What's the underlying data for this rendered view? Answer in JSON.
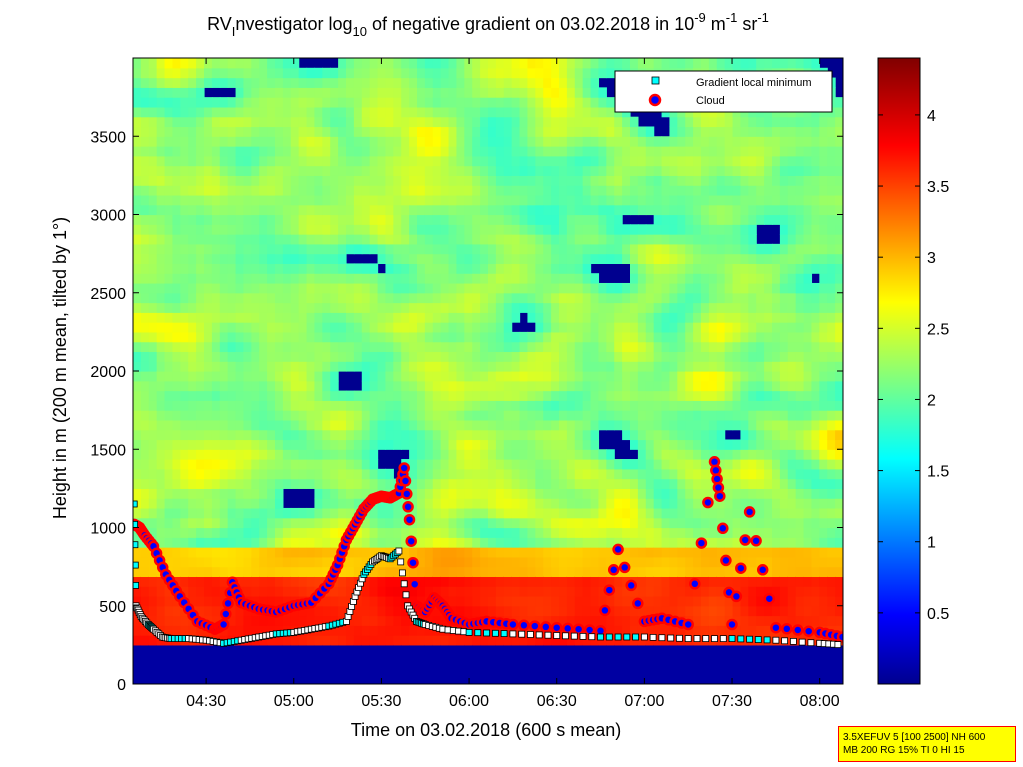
{
  "chart_data": {
    "type": "heatmap",
    "title": {
      "prefix": "RV",
      "prefix_sub": "I",
      "mid": "nvestigator log",
      "log_sub": "10",
      "rest": " of negative gradient on 03.02.2018 in 10",
      "exp1": "-9",
      "unit1": " m",
      "exp2": "-1",
      "unit2": " sr",
      "exp3": "-1"
    },
    "xlabel": "Time on 03.02.2018 (600 s mean)",
    "ylabel": "Height in m (200 m mean, tilted by 1°)",
    "x_ticks": [
      "04:30",
      "05:00",
      "05:30",
      "06:00",
      "06:30",
      "07:00",
      "07:30",
      "08:00"
    ],
    "x_tick_hours": [
      4.5,
      5.0,
      5.5,
      6.0,
      6.5,
      7.0,
      7.5,
      8.0
    ],
    "xlim_hours": [
      4.083,
      8.133
    ],
    "y_ticks": [
      0,
      500,
      1000,
      1500,
      2000,
      2500,
      3000,
      3500
    ],
    "ylim": [
      0,
      4000
    ],
    "colorbar": {
      "ticks": [
        "0.5",
        "1",
        "1.5",
        "2",
        "2.5",
        "3",
        "3.5",
        "4"
      ],
      "tick_values": [
        0.5,
        1,
        1.5,
        2,
        2.5,
        3,
        3.5,
        4
      ],
      "range": [
        0,
        4.4
      ]
    },
    "legend": {
      "placement": "top-right",
      "entries": [
        {
          "label": "Gradient local minimum",
          "marker": "square",
          "color": "#00ffff"
        },
        {
          "label": "Cloud",
          "marker": "circle",
          "color": "#ff0000"
        }
      ]
    },
    "series": [
      {
        "name": "Gradient local minimum",
        "points": [
          [
            4.09,
            1150
          ],
          [
            4.1,
            500
          ],
          [
            4.13,
            430
          ],
          [
            4.17,
            380
          ],
          [
            4.2,
            350
          ],
          [
            4.25,
            300
          ],
          [
            4.3,
            290
          ],
          [
            4.4,
            290
          ],
          [
            4.5,
            280
          ],
          [
            4.6,
            260
          ],
          [
            4.7,
            280
          ],
          [
            4.8,
            300
          ],
          [
            4.9,
            320
          ],
          [
            5.0,
            330
          ],
          [
            5.1,
            350
          ],
          [
            5.2,
            370
          ],
          [
            5.3,
            400
          ],
          [
            5.35,
            560
          ],
          [
            5.4,
            700
          ],
          [
            5.45,
            780
          ],
          [
            5.5,
            820
          ],
          [
            5.55,
            800
          ],
          [
            5.6,
            850
          ],
          [
            5.65,
            500
          ],
          [
            5.7,
            400
          ],
          [
            5.75,
            380
          ],
          [
            5.85,
            350
          ],
          [
            6.0,
            330
          ],
          [
            6.25,
            320
          ],
          [
            6.5,
            310
          ],
          [
            6.75,
            300
          ],
          [
            7.0,
            300
          ],
          [
            7.25,
            290
          ],
          [
            7.5,
            290
          ],
          [
            7.75,
            280
          ],
          [
            8.0,
            260
          ],
          [
            8.13,
            250
          ]
        ]
      },
      {
        "name": "Cloud",
        "points": [
          [
            4.09,
            1020
          ],
          [
            4.12,
            1000
          ],
          [
            4.15,
            950
          ],
          [
            4.2,
            880
          ],
          [
            4.27,
            700
          ],
          [
            4.35,
            560
          ],
          [
            4.45,
            400
          ],
          [
            4.55,
            350
          ],
          [
            4.6,
            380
          ],
          [
            4.65,
            650
          ],
          [
            4.7,
            520
          ],
          [
            4.8,
            480
          ],
          [
            4.9,
            460
          ],
          [
            5.0,
            500
          ],
          [
            5.1,
            520
          ],
          [
            5.2,
            640
          ],
          [
            5.25,
            760
          ],
          [
            5.3,
            920
          ],
          [
            5.35,
            1020
          ],
          [
            5.4,
            1120
          ],
          [
            5.45,
            1180
          ],
          [
            5.5,
            1200
          ],
          [
            5.55,
            1190
          ],
          [
            5.6,
            1220
          ],
          [
            5.63,
            1380
          ],
          [
            5.66,
            1050
          ],
          [
            5.7,
            500
          ],
          [
            5.75,
            460
          ],
          [
            5.8,
            550
          ],
          [
            5.85,
            500
          ],
          [
            5.9,
            420
          ],
          [
            6.0,
            380
          ],
          [
            6.1,
            400
          ],
          [
            6.25,
            380
          ],
          [
            6.5,
            360
          ],
          [
            6.75,
            340
          ],
          [
            6.85,
            860
          ],
          [
            7.0,
            400
          ],
          [
            7.1,
            420
          ],
          [
            7.25,
            380
          ],
          [
            7.4,
            1420
          ],
          [
            7.43,
            1200
          ],
          [
            7.5,
            380
          ],
          [
            7.6,
            1100
          ],
          [
            7.75,
            360
          ],
          [
            8.0,
            330
          ],
          [
            8.13,
            300
          ]
        ]
      }
    ],
    "annotations": [
      "3.5XEFUV 5 [100 2500] NH 600",
      "MB 200 RG 15% TI 0 HI 15"
    ]
  }
}
